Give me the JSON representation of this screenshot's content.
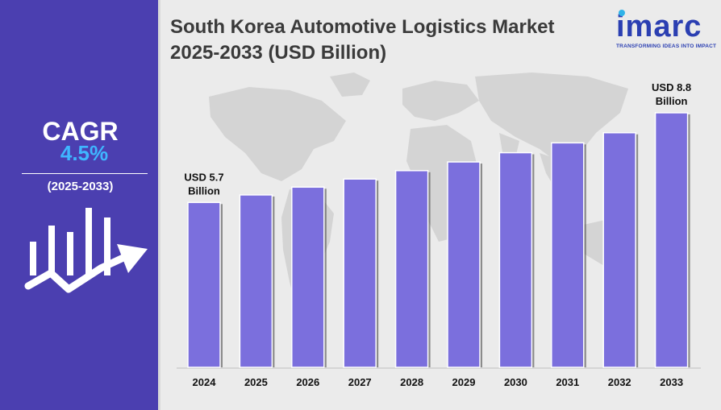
{
  "sidebar": {
    "cagr_label": "CAGR",
    "cagr_value": "4.5%",
    "cagr_period": "(2025-2033)",
    "icon": "growth-bars-arrow-icon"
  },
  "header": {
    "title_line1": "South Korea Automotive Logistics Market",
    "title_line2": "2025-2033 (USD Billion)"
  },
  "logo": {
    "word": "imarc",
    "tagline": "TRANSFORMING IDEAS INTO IMPACT"
  },
  "colors": {
    "sidebar_bg": "#4b3fb0",
    "bar_fill": "#7b6fdd",
    "bar_shadow": "#3d3d3d",
    "cagr_accent": "#3fb6ff",
    "logo_blue": "#2b3fb2"
  },
  "chart_data": {
    "type": "bar",
    "categories": [
      "2024",
      "2025",
      "2026",
      "2027",
      "2028",
      "2029",
      "2030",
      "2031",
      "2032",
      "2033"
    ],
    "values": [
      5.7,
      5.96,
      6.23,
      6.51,
      6.8,
      7.1,
      7.42,
      7.76,
      8.11,
      8.8
    ],
    "annotations": [
      {
        "category": "2024",
        "line1": "USD 5.7",
        "line2": "Billion"
      },
      {
        "category": "2033",
        "line1": "USD 8.8",
        "line2": "Billion"
      }
    ],
    "xlabel": "",
    "ylabel": "",
    "grid": false,
    "legend": "none",
    "background": "world-map"
  }
}
